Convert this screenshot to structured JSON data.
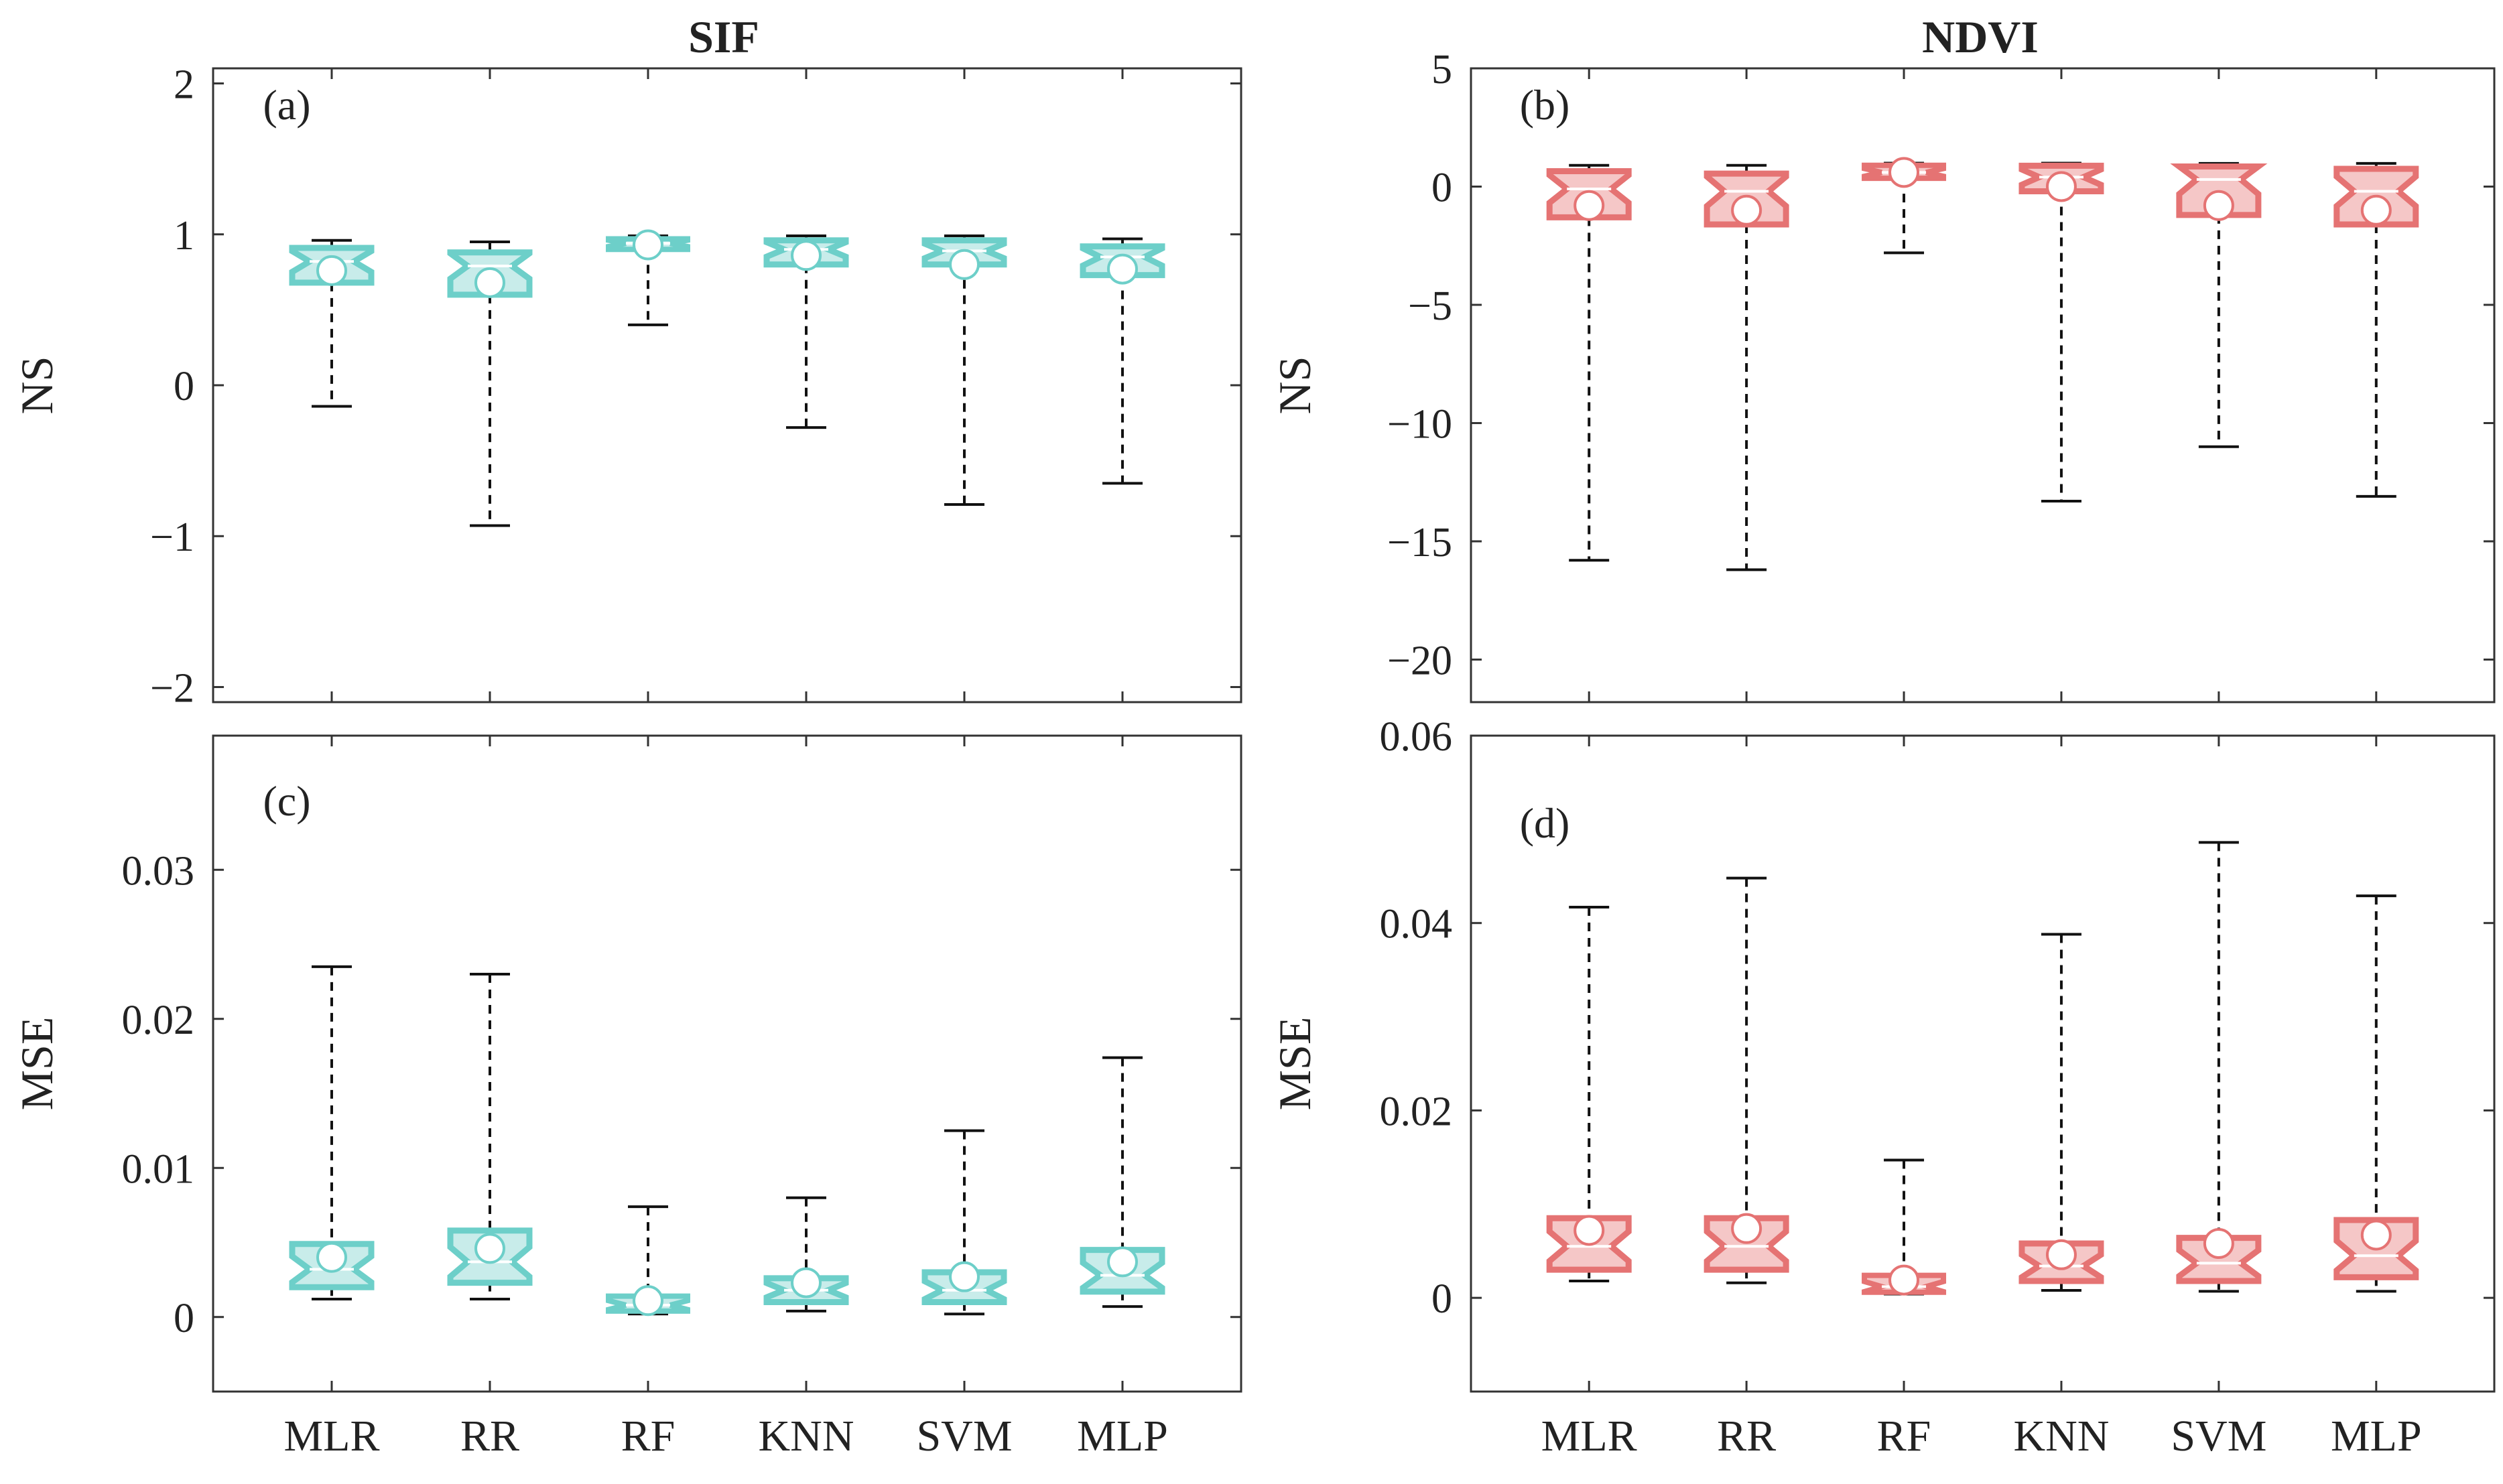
{
  "figure": {
    "column_titles": [
      "SIF",
      "NDVI"
    ],
    "categories": [
      "MLR",
      "RR",
      "RF",
      "KNN",
      "SVM",
      "MLP"
    ]
  },
  "colors": {
    "sif_dark": "#6dcfc9",
    "sif_light": "#c8ecea",
    "ndvi_dark": "#e57373",
    "ndvi_light": "#f5c7c7",
    "axis": "#333333"
  },
  "chart_data": [
    {
      "type": "box",
      "panel_label": "(a)",
      "column": "SIF",
      "ylabel": "NS",
      "ylim": [
        -2.1,
        2.1
      ],
      "yticks": [
        -2,
        -1,
        0,
        1,
        2
      ],
      "ytick_labels": [
        "−2",
        "−1",
        "0",
        "1",
        "2"
      ],
      "color": "sif",
      "categories": [
        "MLR",
        "RR",
        "RF",
        "KNN",
        "SVM",
        "MLP"
      ],
      "boxes": [
        {
          "min": -0.14,
          "q1": 0.68,
          "median": 0.82,
          "q3": 0.91,
          "max": 0.96,
          "mean": 0.76
        },
        {
          "min": -0.93,
          "q1": 0.6,
          "median": 0.79,
          "q3": 0.88,
          "max": 0.95,
          "mean": 0.68
        },
        {
          "min": 0.4,
          "q1": 0.9,
          "median": 0.94,
          "q3": 0.97,
          "max": 0.99,
          "mean": 0.93
        },
        {
          "min": -0.28,
          "q1": 0.8,
          "median": 0.9,
          "q3": 0.96,
          "max": 0.99,
          "mean": 0.86
        },
        {
          "min": -0.79,
          "q1": 0.8,
          "median": 0.89,
          "q3": 0.96,
          "max": 0.99,
          "mean": 0.8
        },
        {
          "min": -0.65,
          "q1": 0.73,
          "median": 0.85,
          "q3": 0.92,
          "max": 0.97,
          "mean": 0.77
        }
      ]
    },
    {
      "type": "box",
      "panel_label": "(b)",
      "column": "NDVI",
      "ylabel": "NS",
      "ylim": [
        -21.8,
        5
      ],
      "yticks": [
        -20,
        -15,
        -10,
        -5,
        0,
        5
      ],
      "ytick_labels": [
        "−20",
        "−15",
        "−10",
        "−5",
        "0",
        "5"
      ],
      "color": "ndvi",
      "categories": [
        "MLR",
        "RR",
        "RF",
        "KNN",
        "SVM",
        "MLP"
      ],
      "boxes": [
        {
          "min": -15.8,
          "q1": -1.3,
          "median": -0.1,
          "q3": 0.65,
          "max": 0.9,
          "mean": -0.8
        },
        {
          "min": -16.2,
          "q1": -1.6,
          "median": -0.2,
          "q3": 0.55,
          "max": 0.9,
          "mean": -1.0
        },
        {
          "min": -2.8,
          "q1": 0.35,
          "median": 0.6,
          "q3": 0.9,
          "max": 0.99,
          "mean": 0.6
        },
        {
          "min": -13.3,
          "q1": -0.2,
          "median": 0.4,
          "q3": 0.88,
          "max": 0.99,
          "mean": 0.0
        },
        {
          "min": -11.0,
          "q1": -1.2,
          "median": 0.3,
          "q3": 0.85,
          "max": 0.98,
          "mean": -0.8
        },
        {
          "min": -13.1,
          "q1": -1.6,
          "median": -0.2,
          "q3": 0.75,
          "max": 0.98,
          "mean": -1.0
        }
      ]
    },
    {
      "type": "box",
      "panel_label": "(c)",
      "column": "SIF",
      "ylabel": "MSE",
      "ylim": [
        -0.005,
        0.039
      ],
      "yticks": [
        0,
        0.01,
        0.02,
        0.03
      ],
      "ytick_labels": [
        "0",
        "0.01",
        "0.02",
        "0.03"
      ],
      "color": "sif",
      "categories": [
        "MLR",
        "RR",
        "RF",
        "KNN",
        "SVM",
        "MLP"
      ],
      "boxes": [
        {
          "min": 0.0012,
          "q1": 0.002,
          "median": 0.0032,
          "q3": 0.0049,
          "max": 0.0235,
          "mean": 0.004
        },
        {
          "min": 0.0012,
          "q1": 0.0023,
          "median": 0.0037,
          "q3": 0.0058,
          "max": 0.023,
          "mean": 0.0046
        },
        {
          "min": 0.0002,
          "q1": 0.0004,
          "median": 0.0008,
          "q3": 0.0014,
          "max": 0.0074,
          "mean": 0.0011
        },
        {
          "min": 0.0004,
          "q1": 0.001,
          "median": 0.0018,
          "q3": 0.0026,
          "max": 0.008,
          "mean": 0.0023
        },
        {
          "min": 0.0002,
          "q1": 0.001,
          "median": 0.0018,
          "q3": 0.003,
          "max": 0.0125,
          "mean": 0.0027
        },
        {
          "min": 0.0007,
          "q1": 0.0017,
          "median": 0.0028,
          "q3": 0.0045,
          "max": 0.0174,
          "mean": 0.0037
        }
      ]
    },
    {
      "type": "box",
      "panel_label": "(d)",
      "column": "NDVI",
      "ylabel": "MSE",
      "ylim": [
        -0.01,
        0.06
      ],
      "yticks": [
        0,
        0.02,
        0.04,
        0.06
      ],
      "ytick_labels": [
        "0",
        "0.02",
        "0.04",
        "0.06"
      ],
      "color": "ndvi",
      "categories": [
        "MLR",
        "RR",
        "RF",
        "KNN",
        "SVM",
        "MLP"
      ],
      "boxes": [
        {
          "min": 0.0018,
          "q1": 0.003,
          "median": 0.0055,
          "q3": 0.0085,
          "max": 0.0417,
          "mean": 0.0072
        },
        {
          "min": 0.0016,
          "q1": 0.003,
          "median": 0.0055,
          "q3": 0.0085,
          "max": 0.0448,
          "mean": 0.0074
        },
        {
          "min": 0.0004,
          "q1": 0.0006,
          "median": 0.0012,
          "q3": 0.0024,
          "max": 0.0147,
          "mean": 0.0019
        },
        {
          "min": 0.0008,
          "q1": 0.0018,
          "median": 0.0034,
          "q3": 0.0058,
          "max": 0.0388,
          "mean": 0.0046
        },
        {
          "min": 0.0007,
          "q1": 0.0018,
          "median": 0.0037,
          "q3": 0.0064,
          "max": 0.0486,
          "mean": 0.0058
        },
        {
          "min": 0.0007,
          "q1": 0.0022,
          "median": 0.0045,
          "q3": 0.0083,
          "max": 0.0429,
          "mean": 0.0067
        }
      ]
    }
  ]
}
